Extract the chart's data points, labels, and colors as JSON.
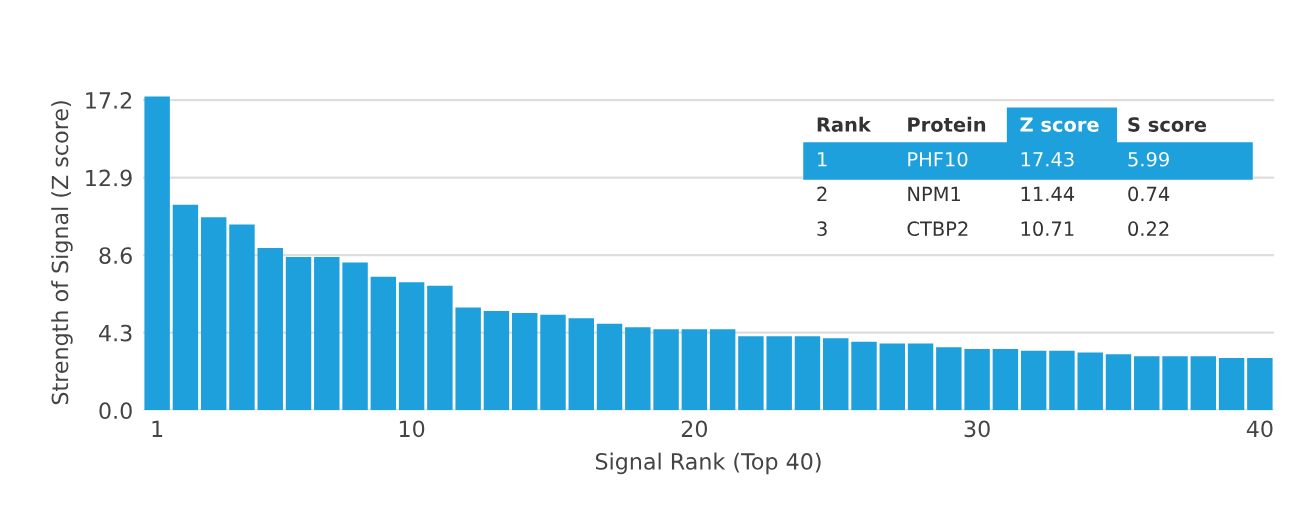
{
  "chart_data": {
    "type": "bar",
    "xlabel": "Signal Rank (Top 40)",
    "ylabel": "Strength of Signal (Z score)",
    "x": [
      1,
      2,
      3,
      4,
      5,
      6,
      7,
      8,
      9,
      10,
      11,
      12,
      13,
      14,
      15,
      16,
      17,
      18,
      19,
      20,
      21,
      22,
      23,
      24,
      25,
      26,
      27,
      28,
      29,
      30,
      31,
      32,
      33,
      34,
      35,
      36,
      37,
      38,
      39,
      40
    ],
    "values": [
      17.4,
      11.4,
      10.7,
      10.3,
      9.0,
      8.5,
      8.5,
      8.2,
      7.4,
      7.1,
      6.9,
      5.7,
      5.5,
      5.4,
      5.3,
      5.1,
      4.8,
      4.6,
      4.5,
      4.5,
      4.5,
      4.1,
      4.1,
      4.1,
      4.0,
      3.8,
      3.7,
      3.7,
      3.5,
      3.4,
      3.4,
      3.3,
      3.3,
      3.2,
      3.1,
      3.0,
      3.0,
      3.0,
      2.9,
      2.9
    ],
    "color": "#1ea0dc",
    "xlim": [
      0.5,
      40.5
    ],
    "xticks": [
      1,
      10,
      20,
      30,
      40
    ],
    "ylim": [
      0,
      17.5
    ],
    "yticks": [
      {
        "value": 0,
        "label": "0.0"
      },
      4.3,
      8.6,
      12.9,
      17.2
    ],
    "grid": "y",
    "annotations": [
      "Rank",
      "Protein",
      "Z score",
      "S score",
      "1",
      "PHF10",
      "17.43",
      "5.99",
      "2",
      "NPM1",
      "11.44",
      "0.74",
      "3",
      "CTBP2",
      "10.71",
      "0.22"
    ]
  }
}
